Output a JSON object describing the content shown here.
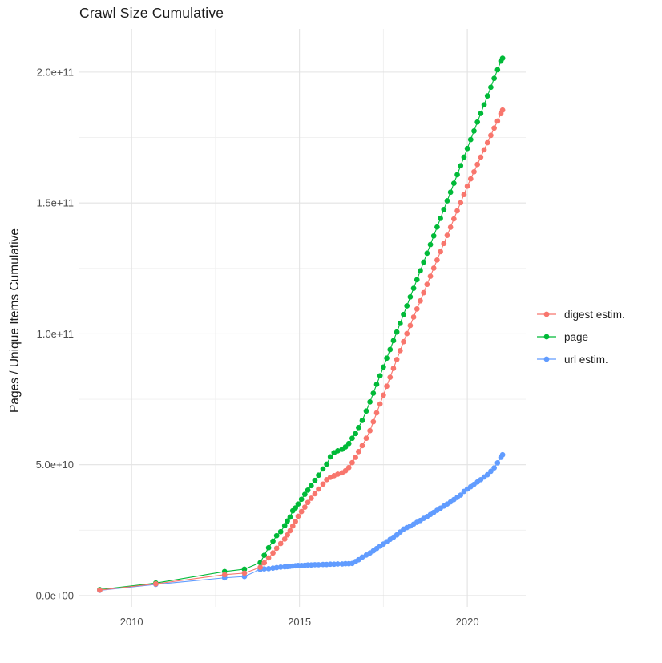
{
  "chart_data": {
    "type": "line",
    "title": "Crawl Size Cumulative",
    "xlabel": "",
    "ylabel": "Pages / Unique Items Cumulative",
    "value_unit": "1e9 (values below are billions)",
    "xlim": [
      2008.42,
      2021.74
    ],
    "ylim": [
      -4.3,
      216.5
    ],
    "grid": true,
    "legend_position": "right",
    "x_major_ticks": [
      {
        "value": 2010,
        "label": "2010"
      },
      {
        "value": 2015,
        "label": "2015"
      },
      {
        "value": 2020,
        "label": "2020"
      }
    ],
    "x_minor_ticks": [
      2012.5,
      2017.5
    ],
    "y_major_ticks": [
      {
        "value": 0,
        "label": "0.0e+00"
      },
      {
        "value": 50,
        "label": "5.0e+10"
      },
      {
        "value": 100,
        "label": "1.0e+11"
      },
      {
        "value": 150,
        "label": "1.5e+11"
      },
      {
        "value": 200,
        "label": "2.0e+11"
      }
    ],
    "y_minor_ticks": [
      25,
      75,
      125,
      175
    ],
    "series": [
      {
        "name": "digest estim.",
        "color": "#F8766D",
        "points": [
          [
            2009.05,
            2.1
          ],
          [
            2010.72,
            4.5
          ],
          [
            2012.77,
            8.0
          ],
          [
            2013.36,
            8.6
          ],
          [
            2013.83,
            10.8
          ],
          [
            2013.95,
            12.5
          ],
          [
            2014.08,
            14.4
          ],
          [
            2014.21,
            16.3
          ],
          [
            2014.32,
            18.1
          ],
          [
            2014.44,
            19.9
          ],
          [
            2014.56,
            21.6
          ],
          [
            2014.64,
            23.2
          ],
          [
            2014.72,
            24.8
          ],
          [
            2014.8,
            26.6
          ],
          [
            2014.88,
            28.3
          ],
          [
            2014.96,
            30.3
          ],
          [
            2015.06,
            32.1
          ],
          [
            2015.16,
            33.8
          ],
          [
            2015.25,
            35.6
          ],
          [
            2015.35,
            37.2
          ],
          [
            2015.46,
            38.9
          ],
          [
            2015.57,
            40.7
          ],
          [
            2015.7,
            42.6
          ],
          [
            2015.81,
            44.3
          ],
          [
            2015.92,
            45.2
          ],
          [
            2016.03,
            45.8
          ],
          [
            2016.14,
            46.4
          ],
          [
            2016.27,
            46.9
          ],
          [
            2016.37,
            47.7
          ],
          [
            2016.47,
            48.9
          ],
          [
            2016.57,
            50.8
          ],
          [
            2016.67,
            52.8
          ],
          [
            2016.76,
            55.0
          ],
          [
            2016.87,
            57.3
          ],
          [
            2016.99,
            60.1
          ],
          [
            2017.1,
            63.0
          ],
          [
            2017.2,
            66.4
          ],
          [
            2017.3,
            69.8
          ],
          [
            2017.4,
            73.2
          ],
          [
            2017.5,
            76.6
          ],
          [
            2017.6,
            80.0
          ],
          [
            2017.7,
            83.4
          ],
          [
            2017.8,
            86.8
          ],
          [
            2017.9,
            90.2
          ],
          [
            2018.0,
            93.6
          ],
          [
            2018.1,
            97.0
          ],
          [
            2018.2,
            100.1
          ],
          [
            2018.3,
            103.2
          ],
          [
            2018.4,
            106.4
          ],
          [
            2018.5,
            109.5
          ],
          [
            2018.6,
            112.6
          ],
          [
            2018.7,
            115.7
          ],
          [
            2018.8,
            118.9
          ],
          [
            2018.9,
            122.0
          ],
          [
            2019.0,
            125.1
          ],
          [
            2019.1,
            128.2
          ],
          [
            2019.2,
            131.4
          ],
          [
            2019.3,
            134.5
          ],
          [
            2019.4,
            137.6
          ],
          [
            2019.5,
            140.7
          ],
          [
            2019.6,
            143.9
          ],
          [
            2019.7,
            147.0
          ],
          [
            2019.8,
            150.1
          ],
          [
            2019.9,
            153.2
          ],
          [
            2020.0,
            156.4
          ],
          [
            2020.1,
            159.2
          ],
          [
            2020.2,
            161.9
          ],
          [
            2020.3,
            164.7
          ],
          [
            2020.4,
            167.5
          ],
          [
            2020.5,
            170.3
          ],
          [
            2020.6,
            173.0
          ],
          [
            2020.7,
            175.8
          ],
          [
            2020.8,
            178.6
          ],
          [
            2020.9,
            181.3
          ],
          [
            2021.0,
            184.1
          ],
          [
            2021.05,
            185.5
          ]
        ]
      },
      {
        "name": "page",
        "color": "#00BA38",
        "points": [
          [
            2009.05,
            2.3
          ],
          [
            2010.72,
            4.8
          ],
          [
            2012.77,
            9.2
          ],
          [
            2013.36,
            10.1
          ],
          [
            2013.83,
            12.6
          ],
          [
            2013.95,
            15.4
          ],
          [
            2014.08,
            18.3
          ],
          [
            2014.21,
            20.8
          ],
          [
            2014.32,
            22.9
          ],
          [
            2014.44,
            24.4
          ],
          [
            2014.56,
            26.7
          ],
          [
            2014.64,
            28.5
          ],
          [
            2014.72,
            30.0
          ],
          [
            2014.8,
            32.4
          ],
          [
            2014.88,
            33.5
          ],
          [
            2014.96,
            35.0
          ],
          [
            2015.06,
            36.8
          ],
          [
            2015.16,
            38.7
          ],
          [
            2015.25,
            40.3
          ],
          [
            2015.35,
            42.0
          ],
          [
            2015.46,
            44.0
          ],
          [
            2015.57,
            46.0
          ],
          [
            2015.7,
            48.4
          ],
          [
            2015.81,
            50.2
          ],
          [
            2015.92,
            53.0
          ],
          [
            2016.03,
            54.6
          ],
          [
            2016.14,
            55.3
          ],
          [
            2016.27,
            55.9
          ],
          [
            2016.37,
            56.8
          ],
          [
            2016.47,
            58.1
          ],
          [
            2016.57,
            60.1
          ],
          [
            2016.67,
            61.9
          ],
          [
            2016.76,
            64.2
          ],
          [
            2016.87,
            66.9
          ],
          [
            2016.99,
            70.5
          ],
          [
            2017.1,
            74.0
          ],
          [
            2017.2,
            77.3
          ],
          [
            2017.3,
            80.7
          ],
          [
            2017.4,
            84.0
          ],
          [
            2017.5,
            87.3
          ],
          [
            2017.6,
            90.7
          ],
          [
            2017.7,
            94.0
          ],
          [
            2017.8,
            97.4
          ],
          [
            2017.9,
            100.7
          ],
          [
            2018.0,
            104.0
          ],
          [
            2018.1,
            107.4
          ],
          [
            2018.2,
            110.7
          ],
          [
            2018.3,
            114.1
          ],
          [
            2018.4,
            117.4
          ],
          [
            2018.5,
            120.7
          ],
          [
            2018.6,
            124.1
          ],
          [
            2018.7,
            127.4
          ],
          [
            2018.8,
            130.8
          ],
          [
            2018.9,
            134.1
          ],
          [
            2019.0,
            137.4
          ],
          [
            2019.1,
            140.8
          ],
          [
            2019.2,
            144.1
          ],
          [
            2019.3,
            147.5
          ],
          [
            2019.4,
            150.8
          ],
          [
            2019.5,
            154.1
          ],
          [
            2019.6,
            157.5
          ],
          [
            2019.7,
            160.8
          ],
          [
            2019.8,
            164.2
          ],
          [
            2019.9,
            167.5
          ],
          [
            2020.0,
            170.8
          ],
          [
            2020.1,
            174.2
          ],
          [
            2020.2,
            177.5
          ],
          [
            2020.3,
            180.9
          ],
          [
            2020.4,
            184.2
          ],
          [
            2020.5,
            187.5
          ],
          [
            2020.6,
            190.9
          ],
          [
            2020.7,
            194.2
          ],
          [
            2020.8,
            197.6
          ],
          [
            2020.9,
            200.9
          ],
          [
            2021.0,
            204.2
          ],
          [
            2021.05,
            205.3
          ]
        ]
      },
      {
        "name": "url estim.",
        "color": "#619CFF",
        "points": [
          [
            2009.05,
            2.0
          ],
          [
            2010.72,
            4.3
          ],
          [
            2012.77,
            6.8
          ],
          [
            2013.36,
            7.3
          ],
          [
            2013.83,
            10.0
          ],
          [
            2013.95,
            10.2
          ],
          [
            2014.08,
            10.3
          ],
          [
            2014.21,
            10.5
          ],
          [
            2014.32,
            10.7
          ],
          [
            2014.44,
            10.9
          ],
          [
            2014.56,
            11.0
          ],
          [
            2014.64,
            11.1
          ],
          [
            2014.72,
            11.2
          ],
          [
            2014.8,
            11.3
          ],
          [
            2014.88,
            11.4
          ],
          [
            2014.96,
            11.5
          ],
          [
            2015.06,
            11.5
          ],
          [
            2015.16,
            11.6
          ],
          [
            2015.25,
            11.7
          ],
          [
            2015.35,
            11.7
          ],
          [
            2015.46,
            11.8
          ],
          [
            2015.57,
            11.8
          ],
          [
            2015.7,
            11.9
          ],
          [
            2015.81,
            11.9
          ],
          [
            2015.92,
            12.0
          ],
          [
            2016.03,
            12.0
          ],
          [
            2016.14,
            12.1
          ],
          [
            2016.27,
            12.1
          ],
          [
            2016.37,
            12.2
          ],
          [
            2016.47,
            12.2
          ],
          [
            2016.57,
            12.3
          ],
          [
            2016.67,
            13.0
          ],
          [
            2016.76,
            13.7
          ],
          [
            2016.87,
            14.7
          ],
          [
            2016.99,
            15.5
          ],
          [
            2017.1,
            16.3
          ],
          [
            2017.2,
            17.1
          ],
          [
            2017.3,
            18.0
          ],
          [
            2017.4,
            18.9
          ],
          [
            2017.5,
            19.7
          ],
          [
            2017.6,
            20.6
          ],
          [
            2017.7,
            21.5
          ],
          [
            2017.8,
            22.3
          ],
          [
            2017.9,
            23.2
          ],
          [
            2018.0,
            24.3
          ],
          [
            2018.1,
            25.4
          ],
          [
            2018.2,
            26.0
          ],
          [
            2018.3,
            26.6
          ],
          [
            2018.4,
            27.3
          ],
          [
            2018.5,
            28.0
          ],
          [
            2018.6,
            28.7
          ],
          [
            2018.7,
            29.5
          ],
          [
            2018.8,
            30.2
          ],
          [
            2018.9,
            31.0
          ],
          [
            2019.0,
            31.8
          ],
          [
            2019.1,
            32.6
          ],
          [
            2019.2,
            33.4
          ],
          [
            2019.3,
            34.2
          ],
          [
            2019.4,
            35.0
          ],
          [
            2019.5,
            35.8
          ],
          [
            2019.6,
            36.7
          ],
          [
            2019.7,
            37.5
          ],
          [
            2019.8,
            38.4
          ],
          [
            2019.9,
            39.8
          ],
          [
            2020.0,
            40.7
          ],
          [
            2020.1,
            41.6
          ],
          [
            2020.2,
            42.5
          ],
          [
            2020.3,
            43.4
          ],
          [
            2020.4,
            44.3
          ],
          [
            2020.5,
            45.3
          ],
          [
            2020.6,
            46.2
          ],
          [
            2020.7,
            47.5
          ],
          [
            2020.8,
            48.8
          ],
          [
            2020.9,
            50.7
          ],
          [
            2021.0,
            52.8
          ],
          [
            2021.05,
            53.8
          ]
        ]
      }
    ]
  },
  "colors": {
    "background": "#FFFFFF",
    "grid_major": "#E3E3E3",
    "grid_minor": "#EFEFEF",
    "axis_text": "#4D4D4D",
    "title_text": "#1A1A1A"
  }
}
